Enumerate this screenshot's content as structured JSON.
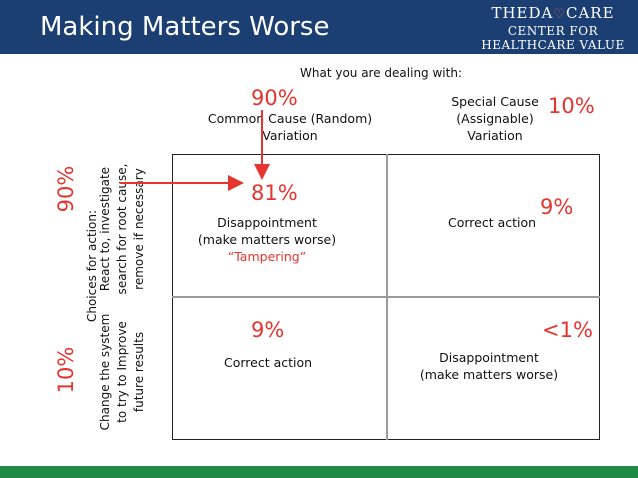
{
  "header": {
    "title": "Making Matters Worse",
    "logo_brand_left": "THEDA",
    "logo_brand_heart": "♡",
    "logo_brand_right": "CARE",
    "logo_line1": "CENTER FOR",
    "logo_line2": "HEALTHCARE VALUE"
  },
  "columns": {
    "caption": "What you are dealing with:",
    "common": {
      "pct": "90%",
      "line1": "Common Cause (Random)",
      "line2": "Variation"
    },
    "special": {
      "pct": "10%",
      "line1": "Special Cause",
      "line2": "(Assignable)",
      "line3": "Variation"
    }
  },
  "rows": {
    "caption": "Choices for action:",
    "react": {
      "pct": "90%",
      "line1": "React to, investigate",
      "line2": "search for root cause,",
      "line3": "remove if necessary"
    },
    "change": {
      "pct": "10%",
      "line1": "Change the system",
      "line2": "to try to Improve",
      "line3": "future results"
    }
  },
  "cells": {
    "top_left": {
      "pct": "81%",
      "line1": "Disappointment",
      "line2": "(make matters worse)",
      "line3": "“Tampering”"
    },
    "top_right": {
      "pct": "9%",
      "line1": "Correct action"
    },
    "bottom_left": {
      "pct": "9%",
      "line1": "Correct action"
    },
    "bottom_right": {
      "pct": "<1%",
      "line1": "Disappointment",
      "line2": "(make matters worse)"
    }
  },
  "colors": {
    "header": "#1b3f73",
    "footer": "#1f8a46",
    "accent": "#e6342e"
  }
}
